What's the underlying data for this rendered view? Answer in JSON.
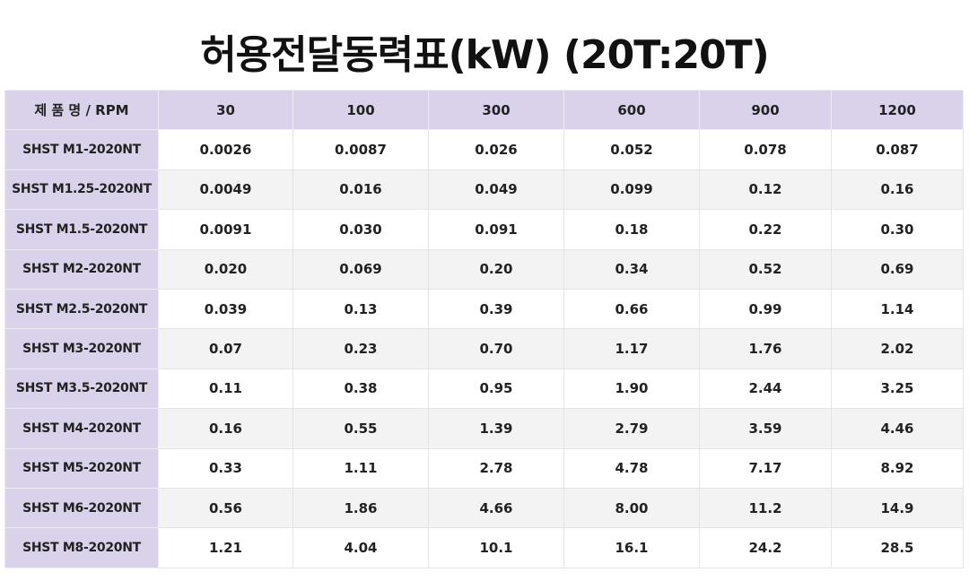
{
  "title": "허용전달동력표(kW) (20T:20T)",
  "table": {
    "header": [
      "제 품 명 / RPM",
      "30",
      "100",
      "300",
      "600",
      "900",
      "1200"
    ],
    "rows": [
      [
        "SHST M1-2020NT",
        "0.0026",
        "0.0087",
        "0.026",
        "0.052",
        "0.078",
        "0.087"
      ],
      [
        "SHST M1.25-2020NT",
        "0.0049",
        "0.016",
        "0.049",
        "0.099",
        "0.12",
        "0.16"
      ],
      [
        "SHST M1.5-2020NT",
        "0.0091",
        "0.030",
        "0.091",
        "0.18",
        "0.22",
        "0.30"
      ],
      [
        "SHST M2-2020NT",
        "0.020",
        "0.069",
        "0.20",
        "0.34",
        "0.52",
        "0.69"
      ],
      [
        "SHST M2.5-2020NT",
        "0.039",
        "0.13",
        "0.39",
        "0.66",
        "0.99",
        "1.14"
      ],
      [
        "SHST M3-2020NT",
        "0.07",
        "0.23",
        "0.70",
        "1.17",
        "1.76",
        "2.02"
      ],
      [
        "SHST M3.5-2020NT",
        "0.11",
        "0.38",
        "0.95",
        "1.90",
        "2.44",
        "3.25"
      ],
      [
        "SHST M4-2020NT",
        "0.16",
        "0.55",
        "1.39",
        "2.79",
        "3.59",
        "4.46"
      ],
      [
        "SHST M5-2020NT",
        "0.33",
        "1.11",
        "2.78",
        "4.78",
        "7.17",
        "8.92"
      ],
      [
        "SHST M6-2020NT",
        "0.56",
        "1.86",
        "4.66",
        "8.00",
        "11.2",
        "14.9"
      ],
      [
        "SHST M8-2020NT",
        "1.21",
        "4.04",
        "10.1",
        "16.1",
        "24.2",
        "28.5"
      ]
    ]
  }
}
